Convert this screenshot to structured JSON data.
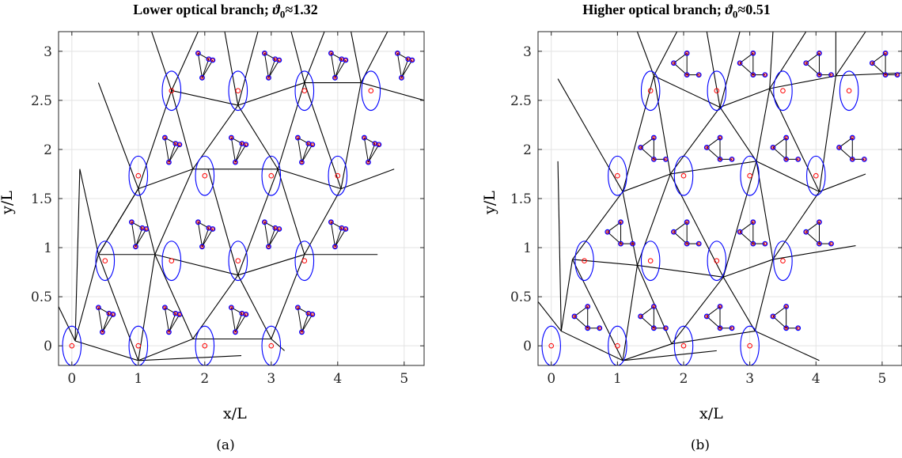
{
  "figure": {
    "panels": [
      {
        "title_text": "Lower optical branch; ",
        "title_symbol": "ϑ",
        "title_sub": "0",
        "title_value": "≈1.32",
        "caption": "(a)",
        "xlabel": "x/L",
        "ylabel": "y/L"
      },
      {
        "title_text": "Higher optical branch; ",
        "title_symbol": "ϑ",
        "title_sub": "0",
        "title_value": "≈0.51",
        "caption": "(b)",
        "xlabel": "x/L",
        "ylabel": "y/L"
      }
    ]
  },
  "chart_data": [
    {
      "type": "scatter",
      "title": "Lower optical branch; ϑ₀≈1.32",
      "xlabel": "x/L",
      "ylabel": "y/L",
      "xlim": [
        -0.2,
        5.3
      ],
      "ylim": [
        -0.2,
        3.2
      ],
      "xticks": [
        0,
        1,
        2,
        3,
        4,
        5
      ],
      "yticks": [
        0,
        0.5,
        1,
        1.5,
        2,
        2.5,
        3
      ],
      "ytick_labels": [
        "0",
        "0.5",
        "1",
        "1.5",
        "2",
        "2.5",
        "3"
      ],
      "grid": true,
      "colors": {
        "lines": "#000000",
        "ellipses": "#0000ff",
        "centers": "#ff0000",
        "small_nodes": "#8800aa"
      },
      "ellipse_centers": [
        [
          0,
          0
        ],
        [
          1,
          0
        ],
        [
          2,
          0
        ],
        [
          3,
          0
        ],
        [
          0.5,
          0.866
        ],
        [
          1.5,
          0.866
        ],
        [
          2.5,
          0.866
        ],
        [
          3.5,
          0.866
        ],
        [
          1,
          1.732
        ],
        [
          2,
          1.732
        ],
        [
          3,
          1.732
        ],
        [
          4,
          1.732
        ],
        [
          1.5,
          2.598
        ],
        [
          2.5,
          2.598
        ],
        [
          3.5,
          2.598
        ],
        [
          4.5,
          2.598
        ]
      ],
      "network_edges": [
        [
          [
            -0.2,
            0.4
          ],
          [
            0.05,
            0.05
          ]
        ],
        [
          [
            0.05,
            0.05
          ],
          [
            1.0,
            -0.15
          ]
        ],
        [
          [
            0.05,
            0.05
          ],
          [
            0.4,
            0.93
          ]
        ],
        [
          [
            0.05,
            0.05
          ],
          [
            0.12,
            1.8
          ]
        ],
        [
          [
            1.0,
            -0.15
          ],
          [
            0.4,
            0.93
          ]
        ],
        [
          [
            1.0,
            -0.15
          ],
          [
            1.82,
            0.07
          ]
        ],
        [
          [
            1.0,
            -0.15
          ],
          [
            2.55,
            -0.1
          ]
        ],
        [
          [
            1.0,
            -0.15
          ],
          [
            1.25,
            0.93
          ]
        ],
        [
          [
            0.4,
            0.93
          ],
          [
            1.25,
            0.93
          ]
        ],
        [
          [
            0.4,
            0.93
          ],
          [
            1.0,
            1.6
          ]
        ],
        [
          [
            1.25,
            0.93
          ],
          [
            1.82,
            0.07
          ]
        ],
        [
          [
            1.25,
            0.93
          ],
          [
            1.0,
            1.6
          ]
        ],
        [
          [
            1.25,
            0.93
          ],
          [
            2.5,
            0.72
          ]
        ],
        [
          [
            1.25,
            0.93
          ],
          [
            1.82,
            1.8
          ]
        ],
        [
          [
            1.82,
            0.07
          ],
          [
            3.0,
            0.07
          ]
        ],
        [
          [
            1.82,
            0.07
          ],
          [
            2.5,
            0.72
          ]
        ],
        [
          [
            3.0,
            0.07
          ],
          [
            2.5,
            0.72
          ]
        ],
        [
          [
            3.0,
            0.07
          ],
          [
            3.5,
            0.93
          ]
        ],
        [
          [
            3.0,
            0.07
          ],
          [
            3.2,
            -0.05
          ]
        ],
        [
          [
            2.5,
            0.72
          ],
          [
            3.5,
            0.93
          ]
        ],
        [
          [
            2.5,
            0.72
          ],
          [
            2.05,
            1.8
          ]
        ],
        [
          [
            2.5,
            0.72
          ],
          [
            3.1,
            1.8
          ]
        ],
        [
          [
            3.5,
            0.93
          ],
          [
            4.6,
            0.93
          ]
        ],
        [
          [
            3.5,
            0.93
          ],
          [
            4.05,
            1.6
          ]
        ],
        [
          [
            3.5,
            0.93
          ],
          [
            3.1,
            1.8
          ]
        ],
        [
          [
            1.0,
            1.6
          ],
          [
            0.4,
            0.93
          ]
        ],
        [
          [
            1.0,
            1.6
          ],
          [
            1.82,
            1.8
          ]
        ],
        [
          [
            1.0,
            1.6
          ],
          [
            0.4,
            2.68
          ]
        ],
        [
          [
            1.0,
            1.6
          ],
          [
            1.5,
            2.6
          ]
        ],
        [
          [
            1.82,
            1.8
          ],
          [
            3.1,
            1.8
          ]
        ],
        [
          [
            1.82,
            1.8
          ],
          [
            2.5,
            2.45
          ]
        ],
        [
          [
            1.82,
            1.8
          ],
          [
            1.5,
            2.6
          ]
        ],
        [
          [
            3.1,
            1.8
          ],
          [
            4.05,
            1.6
          ]
        ],
        [
          [
            3.1,
            1.8
          ],
          [
            2.5,
            2.45
          ]
        ],
        [
          [
            3.1,
            1.8
          ],
          [
            3.5,
            2.68
          ]
        ],
        [
          [
            4.05,
            1.6
          ],
          [
            4.85,
            1.8
          ]
        ],
        [
          [
            4.05,
            1.6
          ],
          [
            3.5,
            2.68
          ]
        ],
        [
          [
            4.05,
            1.6
          ],
          [
            4.35,
            2.68
          ]
        ],
        [
          [
            1.5,
            2.6
          ],
          [
            2.5,
            2.45
          ]
        ],
        [
          [
            1.5,
            2.6
          ],
          [
            1.2,
            3.2
          ]
        ],
        [
          [
            1.5,
            2.6
          ],
          [
            1.9,
            3.2
          ]
        ],
        [
          [
            2.5,
            2.45
          ],
          [
            3.5,
            2.68
          ]
        ],
        [
          [
            2.5,
            2.45
          ],
          [
            2.3,
            3.2
          ]
        ],
        [
          [
            2.5,
            2.45
          ],
          [
            2.8,
            3.2
          ]
        ],
        [
          [
            3.5,
            2.68
          ],
          [
            4.35,
            2.68
          ]
        ],
        [
          [
            3.5,
            2.68
          ],
          [
            3.3,
            3.2
          ]
        ],
        [
          [
            3.5,
            2.68
          ],
          [
            3.8,
            3.2
          ]
        ],
        [
          [
            4.35,
            2.68
          ],
          [
            5.3,
            2.5
          ]
        ],
        [
          [
            4.35,
            2.68
          ],
          [
            4.75,
            3.2
          ]
        ],
        [
          [
            4.35,
            2.68
          ],
          [
            4.2,
            3.2
          ]
        ],
        [
          [
            0.12,
            1.8
          ],
          [
            0.4,
            0.93
          ]
        ]
      ],
      "triads": [
        [
          0.4,
          0.39
        ],
        [
          1.4,
          0.39
        ],
        [
          2.4,
          0.39
        ],
        [
          3.4,
          0.39
        ],
        [
          0.9,
          1.26
        ],
        [
          1.9,
          1.26
        ],
        [
          2.9,
          1.26
        ],
        [
          3.9,
          1.26
        ],
        [
          1.4,
          2.12
        ],
        [
          2.4,
          2.12
        ],
        [
          3.4,
          2.12
        ],
        [
          4.4,
          2.12
        ],
        [
          1.9,
          2.98
        ],
        [
          2.9,
          2.98
        ],
        [
          3.9,
          2.98
        ],
        [
          4.9,
          2.98
        ]
      ]
    },
    {
      "type": "scatter",
      "title": "Higher optical branch; ϑ₀≈0.51",
      "xlabel": "x/L",
      "ylabel": "y/L",
      "xlim": [
        -0.2,
        5.3
      ],
      "ylim": [
        -0.2,
        3.2
      ],
      "xticks": [
        0,
        1,
        2,
        3,
        4,
        5
      ],
      "yticks": [
        0,
        0.5,
        1,
        1.5,
        2,
        2.5,
        3
      ],
      "ytick_labels": [
        "0",
        "0.5",
        "1",
        "1.5",
        "2",
        "2.5",
        "3"
      ],
      "grid": true,
      "colors": {
        "lines": "#000000",
        "ellipses": "#0000ff",
        "centers": "#ff0000",
        "small_nodes": "#8800aa"
      },
      "ellipse_centers": [
        [
          0,
          0
        ],
        [
          1,
          0
        ],
        [
          2,
          0
        ],
        [
          3,
          0
        ],
        [
          0.5,
          0.866
        ],
        [
          1.5,
          0.866
        ],
        [
          2.5,
          0.866
        ],
        [
          3.5,
          0.866
        ],
        [
          1,
          1.732
        ],
        [
          2,
          1.732
        ],
        [
          3,
          1.732
        ],
        [
          4,
          1.732
        ],
        [
          1.5,
          2.598
        ],
        [
          2.5,
          2.598
        ],
        [
          3.5,
          2.598
        ],
        [
          4.5,
          2.598
        ]
      ],
      "network_edges": [
        [
          [
            -0.2,
            0.45
          ],
          [
            0.15,
            0.15
          ]
        ],
        [
          [
            0.15,
            0.15
          ],
          [
            1.08,
            -0.15
          ]
        ],
        [
          [
            0.15,
            0.15
          ],
          [
            0.32,
            0.88
          ]
        ],
        [
          [
            0.15,
            0.15
          ],
          [
            0.1,
            1.88
          ]
        ],
        [
          [
            1.08,
            -0.15
          ],
          [
            0.32,
            0.88
          ]
        ],
        [
          [
            1.08,
            -0.15
          ],
          [
            1.82,
            0.02
          ]
        ],
        [
          [
            1.08,
            -0.15
          ],
          [
            2.5,
            -0.05
          ]
        ],
        [
          [
            1.08,
            -0.15
          ],
          [
            1.3,
            0.82
          ]
        ],
        [
          [
            0.32,
            0.88
          ],
          [
            1.3,
            0.82
          ]
        ],
        [
          [
            0.32,
            0.88
          ],
          [
            1.08,
            1.57
          ]
        ],
        [
          [
            1.3,
            0.82
          ],
          [
            1.82,
            0.02
          ]
        ],
        [
          [
            1.3,
            0.82
          ],
          [
            1.08,
            1.57
          ]
        ],
        [
          [
            1.3,
            0.82
          ],
          [
            2.6,
            0.7
          ]
        ],
        [
          [
            1.3,
            0.82
          ],
          [
            1.8,
            1.75
          ]
        ],
        [
          [
            1.82,
            0.02
          ],
          [
            3.08,
            0.15
          ]
        ],
        [
          [
            1.82,
            0.02
          ],
          [
            2.6,
            0.7
          ]
        ],
        [
          [
            3.08,
            0.15
          ],
          [
            2.6,
            0.7
          ]
        ],
        [
          [
            3.08,
            0.15
          ],
          [
            3.35,
            0.88
          ]
        ],
        [
          [
            3.08,
            0.15
          ],
          [
            4.05,
            -0.15
          ]
        ],
        [
          [
            2.6,
            0.7
          ],
          [
            3.35,
            0.88
          ]
        ],
        [
          [
            2.6,
            0.7
          ],
          [
            1.8,
            1.75
          ]
        ],
        [
          [
            2.6,
            0.7
          ],
          [
            3.1,
            1.88
          ]
        ],
        [
          [
            3.35,
            0.88
          ],
          [
            4.6,
            1.02
          ]
        ],
        [
          [
            3.35,
            0.88
          ],
          [
            4.05,
            1.57
          ]
        ],
        [
          [
            3.35,
            0.88
          ],
          [
            3.1,
            1.88
          ]
        ],
        [
          [
            1.08,
            1.57
          ],
          [
            1.8,
            1.75
          ]
        ],
        [
          [
            1.08,
            1.57
          ],
          [
            0.1,
            2.72
          ]
        ],
        [
          [
            1.08,
            1.57
          ],
          [
            1.55,
            2.75
          ]
        ],
        [
          [
            1.8,
            1.75
          ],
          [
            3.1,
            1.88
          ]
        ],
        [
          [
            1.8,
            1.75
          ],
          [
            2.55,
            2.43
          ]
        ],
        [
          [
            1.8,
            1.75
          ],
          [
            1.55,
            2.75
          ]
        ],
        [
          [
            3.1,
            1.88
          ],
          [
            4.05,
            1.57
          ]
        ],
        [
          [
            3.1,
            1.88
          ],
          [
            2.55,
            2.43
          ]
        ],
        [
          [
            3.1,
            1.88
          ],
          [
            3.3,
            2.62
          ]
        ],
        [
          [
            4.05,
            1.57
          ],
          [
            4.75,
            1.75
          ]
        ],
        [
          [
            4.05,
            1.57
          ],
          [
            3.3,
            2.62
          ]
        ],
        [
          [
            4.05,
            1.57
          ],
          [
            4.3,
            2.75
          ]
        ],
        [
          [
            1.55,
            2.75
          ],
          [
            2.55,
            2.43
          ]
        ],
        [
          [
            1.55,
            2.75
          ],
          [
            1.3,
            3.2
          ]
        ],
        [
          [
            1.55,
            2.75
          ],
          [
            1.9,
            3.2
          ]
        ],
        [
          [
            2.55,
            2.43
          ],
          [
            3.3,
            2.62
          ]
        ],
        [
          [
            2.55,
            2.43
          ],
          [
            2.35,
            3.2
          ]
        ],
        [
          [
            2.55,
            2.43
          ],
          [
            2.85,
            3.2
          ]
        ],
        [
          [
            3.3,
            2.62
          ],
          [
            4.3,
            2.75
          ]
        ],
        [
          [
            3.3,
            2.62
          ],
          [
            3.35,
            3.2
          ]
        ],
        [
          [
            3.3,
            2.62
          ],
          [
            3.85,
            3.2
          ]
        ],
        [
          [
            4.3,
            2.75
          ],
          [
            5.3,
            2.78
          ]
        ],
        [
          [
            4.3,
            2.75
          ],
          [
            4.75,
            3.2
          ]
        ],
        [
          [
            4.3,
            2.75
          ],
          [
            4.3,
            3.2
          ]
        ]
      ],
      "triads": [
        [
          0.35,
          0.3
        ],
        [
          1.35,
          0.3
        ],
        [
          2.35,
          0.3
        ],
        [
          3.35,
          0.3
        ],
        [
          0.85,
          1.16
        ],
        [
          1.85,
          1.16
        ],
        [
          2.85,
          1.16
        ],
        [
          3.85,
          1.16
        ],
        [
          1.35,
          2.02
        ],
        [
          2.35,
          2.02
        ],
        [
          3.35,
          2.02
        ],
        [
          4.35,
          2.02
        ],
        [
          1.85,
          2.88
        ],
        [
          2.85,
          2.88
        ],
        [
          3.85,
          2.88
        ],
        [
          4.85,
          2.88
        ]
      ]
    }
  ]
}
